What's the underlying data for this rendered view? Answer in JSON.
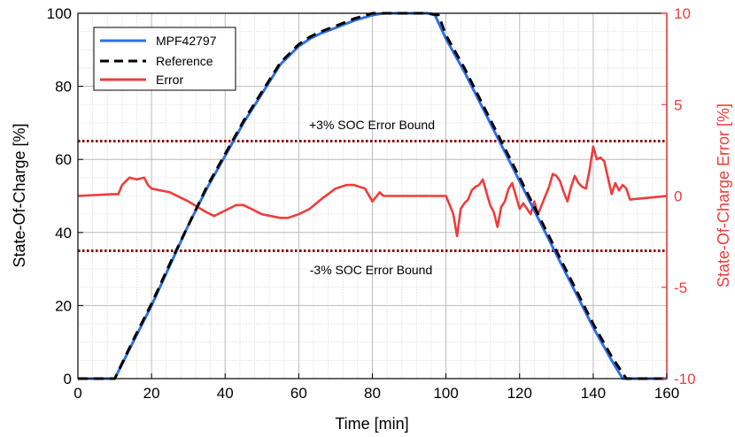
{
  "chart_data": {
    "type": "line",
    "xlabel": "Time [min]",
    "ylabel": "State-Of-Charge [%]",
    "ylabel_right": "State-Of-Charge Error [%]",
    "xlim": [
      0,
      160
    ],
    "ylim": [
      0,
      100
    ],
    "ylim_right": [
      -10,
      10
    ],
    "x_ticks": [
      0,
      20,
      40,
      60,
      80,
      100,
      120,
      140,
      160
    ],
    "y_ticks": [
      0,
      20,
      40,
      60,
      80,
      100
    ],
    "y_ticks_right": [
      -10,
      -5,
      0,
      5,
      10
    ],
    "grid": true,
    "minor_grid": true,
    "legend_position": "top-left",
    "colors": {
      "mpf": "#2f6fe8",
      "reference": "#000000",
      "error": "#f03c3c",
      "bound": "#8b0000",
      "right_axis": "#f03c3c"
    },
    "series": [
      {
        "name": "MPF42797",
        "axis": "left",
        "style": "solid",
        "x": [
          0,
          10,
          15,
          20,
          25,
          30,
          35,
          40,
          45,
          50,
          55,
          58,
          60,
          63,
          66,
          70,
          75,
          80,
          83,
          85,
          90,
          95,
          97,
          100,
          105,
          110,
          115,
          120,
          125,
          130,
          135,
          140,
          145,
          148,
          150,
          155,
          160
        ],
        "y": [
          0,
          0,
          10,
          20,
          31,
          42,
          52,
          61,
          70,
          78,
          86,
          89,
          91,
          93,
          94.5,
          96,
          98,
          99.5,
          100,
          100,
          100,
          100,
          99.5,
          93,
          84,
          74,
          64,
          54,
          44,
          34,
          24,
          14,
          5,
          0,
          0,
          0,
          0
        ]
      },
      {
        "name": "Reference",
        "axis": "left",
        "style": "dashed",
        "x": [
          0,
          10,
          15,
          20,
          25,
          30,
          35,
          40,
          45,
          50,
          55,
          58,
          60,
          63,
          66,
          70,
          75,
          80,
          83,
          85,
          90,
          95,
          98,
          100,
          105,
          110,
          115,
          120,
          125,
          130,
          135,
          140,
          145,
          149,
          150,
          155,
          160
        ],
        "y": [
          0,
          0,
          10.5,
          20.5,
          31.5,
          42,
          52.5,
          61.5,
          70.5,
          78.5,
          86.5,
          89.5,
          91.5,
          93.5,
          95,
          96.5,
          98.5,
          100,
          100,
          100,
          100,
          100,
          99.5,
          94,
          85,
          75,
          65,
          55,
          45,
          35,
          25,
          15,
          6,
          0,
          0,
          0,
          0
        ]
      },
      {
        "name": "Error",
        "axis": "right",
        "style": "solid",
        "x": [
          0,
          10,
          11,
          12,
          14,
          16,
          18,
          19,
          20,
          25,
          30,
          35,
          37,
          40,
          43,
          45,
          50,
          55,
          57,
          60,
          63,
          66,
          70,
          73,
          75,
          78,
          80,
          82,
          83,
          85,
          90,
          95,
          100,
          101,
          102,
          103,
          104,
          105,
          106,
          107,
          108,
          109,
          110,
          111,
          112,
          113,
          114,
          115,
          116,
          117,
          118,
          119,
          120,
          121,
          122,
          123,
          124,
          125,
          126,
          127,
          128,
          129,
          130,
          131,
          132,
          133,
          134,
          135,
          136,
          137,
          138,
          139,
          140,
          141,
          142,
          143,
          144,
          145,
          146,
          147,
          148,
          149,
          150,
          155,
          160
        ],
        "y": [
          0,
          0.1,
          0.1,
          0.6,
          1.0,
          0.9,
          1.0,
          0.6,
          0.4,
          0.2,
          -0.3,
          -0.9,
          -1.1,
          -0.8,
          -0.5,
          -0.5,
          -1.0,
          -1.2,
          -1.2,
          -1.0,
          -0.7,
          -0.2,
          0.4,
          0.6,
          0.6,
          0.4,
          -0.3,
          0.2,
          0.0,
          0.0,
          0.0,
          0.0,
          0.0,
          -0.5,
          -1.0,
          -2.2,
          -0.7,
          -0.4,
          -0.2,
          0.3,
          0.5,
          0.6,
          0.9,
          0.2,
          -0.5,
          -0.9,
          -1.7,
          -0.6,
          -0.3,
          0.4,
          0.7,
          0.0,
          -0.7,
          -0.4,
          -0.7,
          -1.0,
          -0.3,
          -1.0,
          -0.5,
          0.0,
          0.5,
          1.2,
          1.1,
          0.8,
          0.2,
          -0.3,
          0.5,
          1.1,
          0.7,
          0.5,
          0.4,
          1.4,
          2.7,
          2.0,
          2.1,
          1.9,
          1.0,
          0.1,
          0.7,
          0.3,
          0.6,
          0.4,
          -0.2,
          -0.1,
          0.0
        ]
      }
    ],
    "bounds": [
      {
        "label": "+3% SOC Error Bound",
        "value": 3,
        "axis": "right"
      },
      {
        "label": "-3% SOC Error Bound",
        "value": -3,
        "axis": "right"
      }
    ]
  }
}
